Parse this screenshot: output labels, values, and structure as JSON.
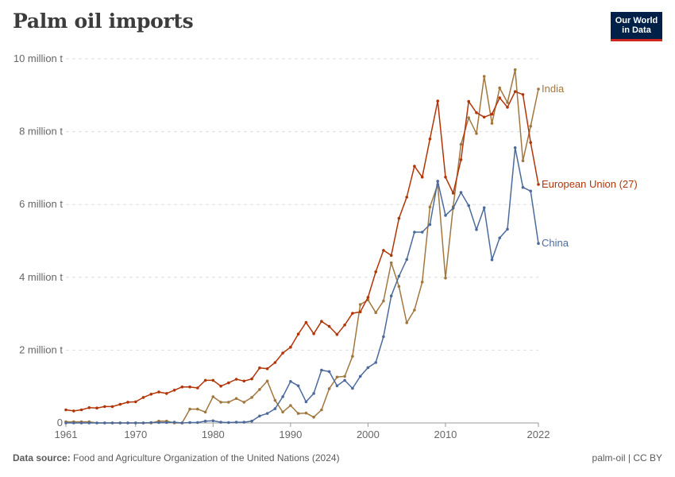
{
  "header": {
    "title": "Palm oil imports",
    "logo_line1": "Our World",
    "logo_line2": "in Data"
  },
  "footer": {
    "source_label": "Data source:",
    "source_text": "Food and Agriculture Organization of the United Nations (2024)",
    "license": "palm-oil | CC BY"
  },
  "chart_data": {
    "type": "line",
    "title": "Palm oil imports",
    "xlabel": "",
    "ylabel": "",
    "x_range": [
      1961,
      2022
    ],
    "ylim": [
      0,
      10000000
    ],
    "y_ticks": [
      {
        "value": 0,
        "label": "0"
      },
      {
        "value": 2000000,
        "label": "2 million t"
      },
      {
        "value": 4000000,
        "label": "4 million t"
      },
      {
        "value": 6000000,
        "label": "6 million t"
      },
      {
        "value": 8000000,
        "label": "8 million t"
      },
      {
        "value": 10000000,
        "label": "10 million t"
      }
    ],
    "x_ticks": [
      {
        "value": 1961,
        "label": "1961"
      },
      {
        "value": 1970,
        "label": "1970"
      },
      {
        "value": 1980,
        "label": "1980"
      },
      {
        "value": 1990,
        "label": "1990"
      },
      {
        "value": 2000,
        "label": "2000"
      },
      {
        "value": 2010,
        "label": "2010"
      },
      {
        "value": 2022,
        "label": "2022"
      }
    ],
    "grid": true,
    "legend": "inline labels at right end of lines",
    "series": [
      {
        "name": "India",
        "color": "#a2773f",
        "start_year": 1961,
        "values": [
          30000,
          30000,
          30000,
          30000,
          0,
          0,
          0,
          0,
          0,
          0,
          0,
          0,
          50000,
          50000,
          0,
          0,
          380000,
          380000,
          300000,
          720000,
          570000,
          570000,
          670000,
          570000,
          700000,
          920000,
          1150000,
          620000,
          300000,
          480000,
          260000,
          270000,
          160000,
          360000,
          940000,
          1260000,
          1280000,
          1830000,
          3250000,
          3380000,
          3030000,
          3350000,
          4400000,
          3750000,
          2750000,
          3100000,
          3870000,
          5930000,
          6550000,
          3980000,
          5940000,
          7650000,
          8380000,
          7950000,
          9520000,
          8230000,
          9200000,
          8800000,
          9700000,
          7200000,
          8150000,
          9170000
        ]
      },
      {
        "name": "European Union (27)",
        "color": "#b13507",
        "start_year": 1961,
        "values": [
          360000,
          330000,
          360000,
          420000,
          410000,
          450000,
          450000,
          510000,
          570000,
          580000,
          700000,
          790000,
          850000,
          810000,
          900000,
          990000,
          990000,
          960000,
          1170000,
          1170000,
          1010000,
          1100000,
          1200000,
          1150000,
          1210000,
          1510000,
          1490000,
          1660000,
          1920000,
          2080000,
          2440000,
          2760000,
          2450000,
          2790000,
          2650000,
          2430000,
          2690000,
          3010000,
          3050000,
          3450000,
          4150000,
          4740000,
          4600000,
          5620000,
          6200000,
          7050000,
          6750000,
          7800000,
          8840000,
          6750000,
          6310000,
          7230000,
          8830000,
          8520000,
          8400000,
          8480000,
          8930000,
          8670000,
          9100000,
          9020000,
          7700000,
          6550000
        ]
      },
      {
        "name": "China",
        "color": "#4c6a9c",
        "start_year": 1961,
        "values": [
          0,
          0,
          0,
          0,
          0,
          0,
          0,
          0,
          0,
          0,
          0,
          10000,
          10000,
          10000,
          20000,
          0,
          10000,
          10000,
          50000,
          60000,
          20000,
          10000,
          20000,
          20000,
          50000,
          190000,
          260000,
          390000,
          720000,
          1140000,
          1020000,
          580000,
          810000,
          1450000,
          1410000,
          1020000,
          1170000,
          950000,
          1280000,
          1520000,
          1660000,
          2370000,
          3490000,
          4030000,
          4490000,
          5240000,
          5240000,
          5450000,
          6640000,
          5700000,
          5900000,
          6330000,
          5970000,
          5310000,
          5910000,
          4480000,
          5080000,
          5320000,
          7560000,
          6470000,
          6370000,
          4930000
        ]
      }
    ]
  }
}
